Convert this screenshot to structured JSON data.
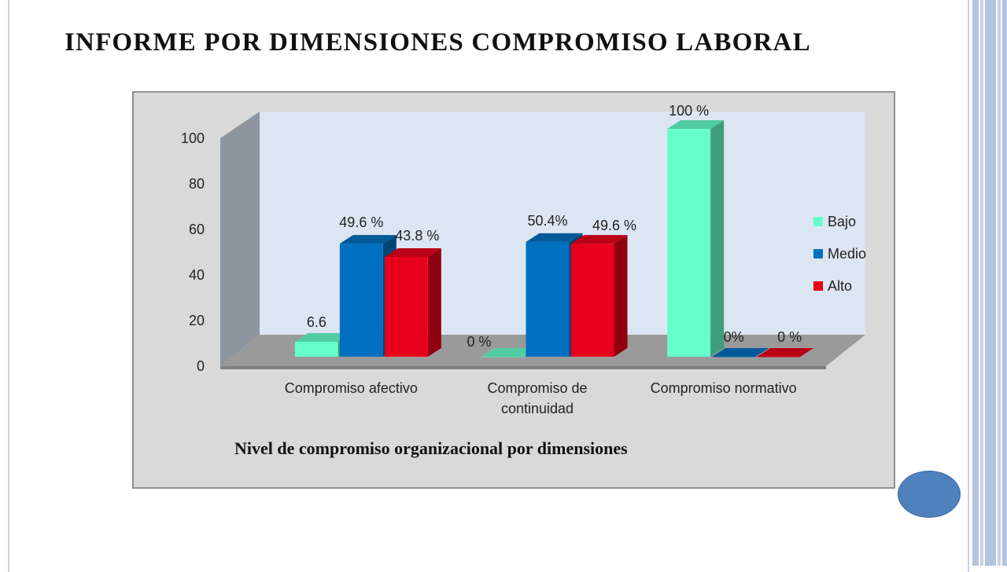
{
  "slide": {
    "title": "INFORME POR DIMENSIONES COMPROMISO LABORAL"
  },
  "chart_data": {
    "type": "bar",
    "style": "3d-clustered-column",
    "title": "",
    "caption": "Nivel de compromiso organizacional por dimensiones",
    "xlabel": "",
    "ylabel": "",
    "ylim": [
      0,
      100
    ],
    "yticks": [
      0,
      20,
      40,
      60,
      80,
      100
    ],
    "categories": [
      [
        "Compromiso afectivo"
      ],
      [
        "Compromiso de",
        "continuidad"
      ],
      [
        "Compromiso normativo"
      ]
    ],
    "series": [
      {
        "name": "Bajo",
        "color": "#66ffcc",
        "values": [
          6.6,
          0,
          100
        ],
        "labels": [
          "6.6",
          "0 %",
          "100 %"
        ]
      },
      {
        "name": "Medio",
        "color": "#0070c0",
        "values": [
          49.6,
          50.4,
          0
        ],
        "labels": [
          "49.6 %",
          "50.4%",
          "0%"
        ]
      },
      {
        "name": "Alto",
        "color": "#e8001c",
        "values": [
          43.8,
          49.6,
          0
        ],
        "labels": [
          "43.8 %",
          "49.6 %",
          "0  %"
        ]
      }
    ],
    "legend": "right",
    "grid": false
  }
}
